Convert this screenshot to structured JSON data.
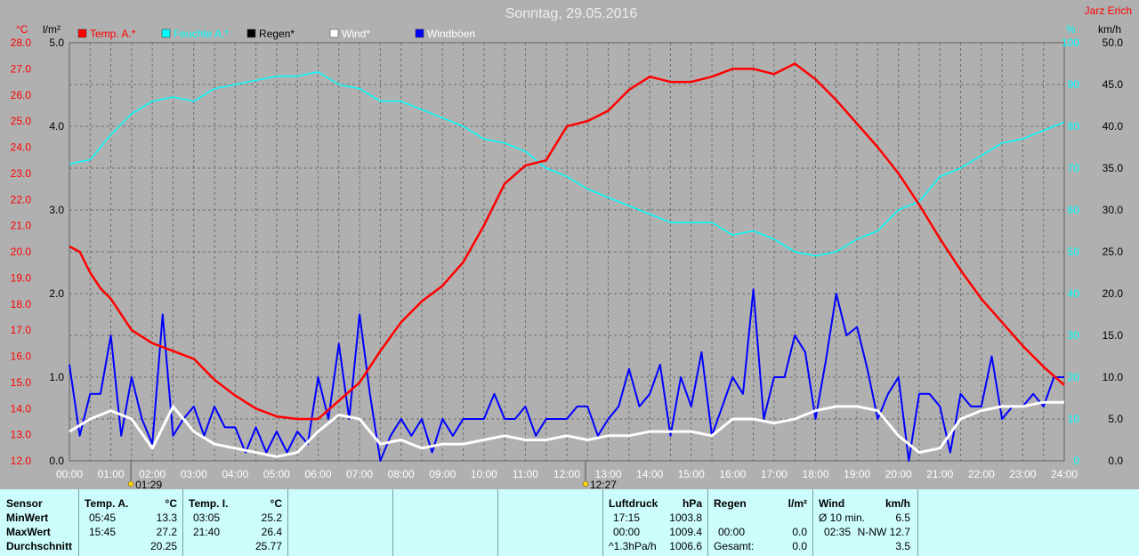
{
  "header": {
    "title": "Sonntag, 29.05.2016",
    "author": "Jarz Erich"
  },
  "units": {
    "temp": "°C",
    "rain": "l/m²",
    "pressure_short": "%",
    "wind": "km/h"
  },
  "legend": [
    {
      "label": "Temp. A.*",
      "color": "#ff0000"
    },
    {
      "label": "Feuchte A.*",
      "color": "#00ffff"
    },
    {
      "label": "Regen*",
      "color": "#000000"
    },
    {
      "label": "Wind*",
      "color": "#ffffff"
    },
    {
      "label": "Windböen",
      "color": "#0000ff"
    }
  ],
  "markers": {
    "sunrise": "01:29",
    "sunset": "12:27"
  },
  "chart_data": {
    "type": "line",
    "title": "Sonntag, 29.05.2016",
    "x_ticks": [
      "00:00",
      "01:00",
      "02:00",
      "03:00",
      "04:00",
      "05:00",
      "06:00",
      "07:00",
      "08:00",
      "09:00",
      "10:00",
      "11:00",
      "12:00",
      "13:00",
      "14:00",
      "15:00",
      "16:00",
      "17:00",
      "18:00",
      "19:00",
      "20:00",
      "21:00",
      "22:00",
      "23:00",
      "24:00"
    ],
    "axes": {
      "temp": {
        "label": "°C",
        "range": [
          12,
          28
        ],
        "ticks": [
          "12.0",
          "13.0",
          "14.0",
          "15.0",
          "16.0",
          "17.0",
          "18.0",
          "19.0",
          "20.0",
          "21.0",
          "22.0",
          "23.0",
          "24.0",
          "25.0",
          "26.0",
          "27.0",
          "28.0"
        ]
      },
      "rain": {
        "label": "l/m²",
        "range": [
          0,
          5
        ],
        "ticks": [
          "0.0",
          "1.0",
          "2.0",
          "3.0",
          "4.0",
          "5.0"
        ]
      },
      "humidity": {
        "label": "%",
        "range": [
          0,
          100
        ],
        "ticks": [
          "0",
          "10",
          "20",
          "30",
          "40",
          "50",
          "60",
          "70",
          "80",
          "90",
          "100"
        ]
      },
      "wind": {
        "label": "km/h",
        "range": [
          0,
          50
        ],
        "ticks": [
          "0.0",
          "5.0",
          "10.0",
          "15.0",
          "20.0",
          "25.0",
          "30.0",
          "35.0",
          "40.0",
          "45.0",
          "50.0"
        ]
      }
    },
    "series": [
      {
        "name": "Temp. A.*",
        "axis": "temp",
        "color": "#ff0000",
        "x": [
          0,
          0.25,
          0.5,
          0.75,
          1,
          1.5,
          2,
          2.5,
          3,
          3.5,
          4,
          4.5,
          5,
          5.5,
          6,
          6.5,
          7,
          7.5,
          8,
          8.5,
          9,
          9.5,
          10,
          10.5,
          11,
          11.5,
          12,
          12.5,
          13,
          13.5,
          14,
          14.5,
          15,
          15.5,
          16,
          16.5,
          17,
          17.5,
          18,
          18.5,
          19,
          19.5,
          20,
          20.5,
          21,
          21.5,
          22,
          22.5,
          23,
          23.5,
          24
        ],
        "y": [
          20.2,
          20.0,
          19.2,
          18.6,
          18.2,
          17.0,
          16.5,
          16.2,
          15.9,
          15.1,
          14.5,
          14.0,
          13.7,
          13.6,
          13.6,
          14.3,
          15.0,
          16.2,
          17.3,
          18.1,
          18.7,
          19.6,
          21.0,
          22.6,
          23.3,
          23.5,
          24.8,
          25.0,
          25.4,
          26.2,
          26.7,
          26.5,
          26.5,
          26.7,
          27.0,
          27.0,
          26.8,
          27.2,
          26.6,
          25.8,
          24.9,
          24.0,
          23.0,
          21.8,
          20.5,
          19.3,
          18.2,
          17.3,
          16.4,
          15.6,
          14.9
        ]
      },
      {
        "name": "Feuchte A.*",
        "axis": "humidity",
        "color": "#00ffff",
        "x": [
          0,
          0.5,
          1,
          1.5,
          2,
          2.5,
          3,
          3.5,
          4,
          4.5,
          5,
          5.5,
          6,
          6.5,
          7,
          7.5,
          8,
          8.5,
          9,
          9.5,
          10,
          10.5,
          11,
          11.5,
          12,
          12.5,
          13,
          13.5,
          14,
          14.5,
          15,
          15.5,
          16,
          16.5,
          17,
          17.5,
          18,
          18.5,
          19,
          19.5,
          20,
          20.5,
          21,
          21.5,
          22,
          22.5,
          23,
          23.5,
          24
        ],
        "y": [
          71,
          72,
          78,
          83,
          86,
          87,
          86,
          89,
          90,
          91,
          92,
          92,
          93,
          90,
          89,
          86,
          86,
          84,
          82,
          80,
          77,
          76,
          74,
          70,
          68,
          65,
          63,
          61,
          59,
          57,
          57,
          57,
          54,
          55,
          53,
          50,
          49,
          50,
          53,
          55,
          60,
          62,
          68,
          70,
          73,
          76,
          77,
          79,
          81
        ]
      },
      {
        "name": "Wind*",
        "axis": "wind",
        "color": "#ffffff",
        "x": [
          0,
          0.5,
          1,
          1.5,
          2,
          2.5,
          3,
          3.5,
          4,
          4.5,
          5,
          5.5,
          6,
          6.5,
          7,
          7.5,
          8,
          8.5,
          9,
          9.5,
          10,
          10.5,
          11,
          11.5,
          12,
          12.5,
          13,
          13.5,
          14,
          14.5,
          15,
          15.5,
          16,
          16.5,
          17,
          17.5,
          18,
          18.5,
          19,
          19.5,
          20,
          20.5,
          21,
          21.5,
          22,
          22.5,
          23,
          23.5,
          24
        ],
        "y": [
          3.5,
          5,
          6,
          5,
          1.5,
          6.5,
          3.5,
          2,
          1.5,
          1,
          0.5,
          1,
          3.5,
          5.5,
          5,
          2,
          2.5,
          1.5,
          2,
          2,
          2.5,
          3,
          2.5,
          2.5,
          3,
          2.5,
          3,
          3,
          3.5,
          3.5,
          3.5,
          3,
          5,
          5,
          4.5,
          5,
          6,
          6.5,
          6.5,
          6,
          3,
          1,
          1.5,
          5,
          6,
          6.5,
          6.5,
          7,
          7
        ]
      },
      {
        "name": "Windböen",
        "axis": "wind",
        "color": "#0000ff",
        "x": [
          0,
          0.25,
          0.5,
          0.75,
          1,
          1.25,
          1.5,
          1.75,
          2,
          2.25,
          2.5,
          2.75,
          3,
          3.25,
          3.5,
          3.75,
          4,
          4.25,
          4.5,
          4.75,
          5,
          5.25,
          5.5,
          5.75,
          6,
          6.25,
          6.5,
          6.75,
          7,
          7.25,
          7.5,
          7.75,
          8,
          8.25,
          8.5,
          8.75,
          9,
          9.25,
          9.5,
          9.75,
          10,
          10.25,
          10.5,
          10.75,
          11,
          11.25,
          11.5,
          11.75,
          12,
          12.25,
          12.5,
          12.75,
          13,
          13.25,
          13.5,
          13.75,
          14,
          14.25,
          14.5,
          14.75,
          15,
          15.25,
          15.5,
          15.75,
          16,
          16.25,
          16.5,
          16.75,
          17,
          17.25,
          17.5,
          17.75,
          18,
          18.25,
          18.5,
          18.75,
          19,
          19.25,
          19.5,
          19.75,
          20,
          20.25,
          20.5,
          20.75,
          21,
          21.25,
          21.5,
          21.75,
          22,
          22.25,
          22.5,
          22.75,
          23,
          23.25,
          23.5,
          23.75,
          24
        ],
        "y": [
          11.5,
          3,
          8,
          8,
          15,
          3,
          10,
          5,
          2,
          17.5,
          3,
          5,
          6.5,
          3,
          6.5,
          4,
          4,
          1,
          4,
          1,
          3.5,
          1,
          3.5,
          2,
          10,
          5,
          14,
          5,
          17.5,
          8,
          0,
          3,
          5,
          3,
          5,
          1,
          5,
          3,
          5,
          5,
          5,
          8,
          5,
          5,
          6.5,
          3,
          5,
          5,
          5,
          6.5,
          6.5,
          3,
          5,
          6.5,
          11,
          6.5,
          8,
          11.5,
          3,
          10,
          6.5,
          13,
          3,
          6.5,
          10,
          8,
          20.5,
          5,
          10,
          10,
          15,
          13,
          5,
          12,
          20,
          15,
          16,
          11,
          5,
          8,
          10,
          0,
          8,
          8,
          6.5,
          1,
          8,
          6.5,
          6.5,
          12.5,
          5,
          6.5,
          6.5,
          8,
          6.5,
          10,
          10
        ]
      }
    ]
  },
  "summary": {
    "sensor": {
      "heading": "Sensor",
      "rows": [
        "MinWert",
        "MaxWert",
        "Durchschnitt"
      ]
    },
    "temp_a": {
      "heading": "Temp. A.",
      "unit": "°C",
      "rows": [
        {
          "time": "05:45",
          "value": "13.3"
        },
        {
          "time": "15:45",
          "value": "27.2"
        },
        {
          "time": "",
          "value": "20.25"
        }
      ]
    },
    "temp_i": {
      "heading": "Temp. I.",
      "unit": "°C",
      "rows": [
        {
          "time": "03:05",
          "value": "25.2"
        },
        {
          "time": "21:40",
          "value": "26.4"
        },
        {
          "time": "",
          "value": "25.77"
        }
      ]
    },
    "pressure": {
      "heading": "Luftdruck",
      "unit": "hPa",
      "rows": [
        {
          "time": "17:15",
          "value": "1003.8"
        },
        {
          "time": "00:00",
          "value": "1009.4"
        },
        {
          "time": "^1.3hPa/h",
          "value": "1006.6"
        }
      ]
    },
    "rain": {
      "heading": "Regen",
      "unit": "l/m²",
      "rows": [
        {
          "time": "",
          "value": ""
        },
        {
          "time": "00:00",
          "value": "0.0"
        },
        {
          "time": "Gesamt:",
          "value": "0.0"
        }
      ]
    },
    "wind": {
      "heading": "Wind",
      "unit": "km/h",
      "rows": [
        {
          "time": "Ø 10 min.",
          "value": "6.5"
        },
        {
          "time": "02:35",
          "value": "N-NW 12.7"
        },
        {
          "time": "",
          "value": "3.5"
        }
      ]
    }
  }
}
